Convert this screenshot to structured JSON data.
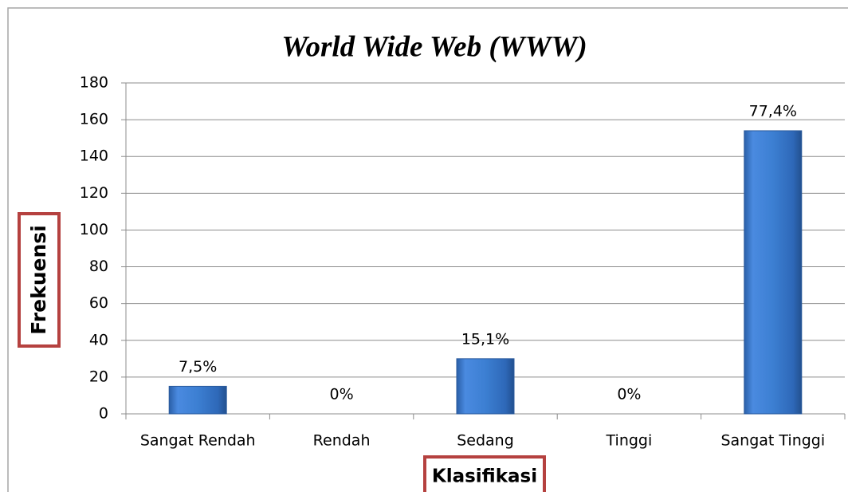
{
  "chart_data": {
    "type": "bar",
    "title": "World Wide Web (WWW)",
    "x_label": "Klasifikasi",
    "y_label": "Frekuensi",
    "categories": [
      "Sangat Rendah",
      "Rendah",
      "Sedang",
      "Tinggi",
      "Sangat Tinggi"
    ],
    "values": [
      15,
      0,
      30,
      0,
      154
    ],
    "percent_labels": [
      "7,5%",
      "0%",
      "15,1%",
      "0%",
      "77,4%"
    ],
    "color": "#3c7fd2",
    "ylim": [
      0,
      180
    ],
    "yticks": [
      0,
      20,
      40,
      60,
      80,
      100,
      120,
      140,
      160,
      180
    ],
    "grid": true
  }
}
